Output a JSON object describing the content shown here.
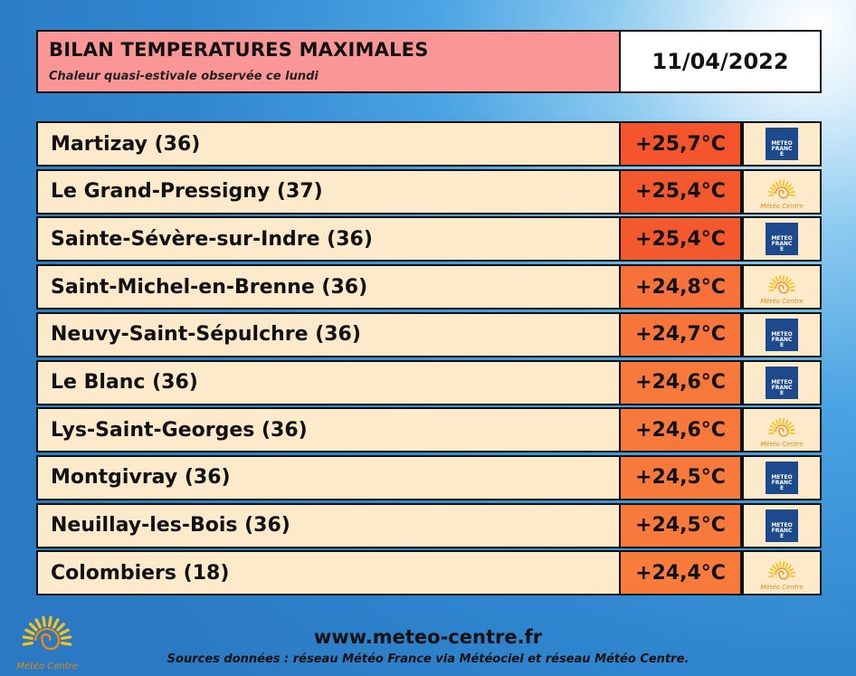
{
  "header": {
    "title": "BILAN TEMPERATURES MAXIMALES",
    "subtitle": "Chaleur quasi-estivale observée ce lundi",
    "date": "11/04/2022"
  },
  "table": {
    "rows": [
      {
        "station": "Martizay (36)",
        "temp": "+25,7°C",
        "color": "#f4552c",
        "logo": "METEO FRANCE"
      },
      {
        "station": "Le Grand-Pressigny (37)",
        "temp": "+25,4°C",
        "color": "#f4582d",
        "logo": "Météo Centre"
      },
      {
        "station": "Sainte-Sévère-sur-Indre (36)",
        "temp": "+25,4°C",
        "color": "#f4582d",
        "logo": "METEO FRANCE"
      },
      {
        "station": "Saint-Michel-en-Brenne (36)",
        "temp": "+24,8°C",
        "color": "#f7723a",
        "logo": "Météo Centre"
      },
      {
        "station": "Neuvy-Saint-Sépulchre (36)",
        "temp": "+24,7°C",
        "color": "#f7753a",
        "logo": "METEO FRANCE"
      },
      {
        "station": "Le Blanc (36)",
        "temp": "+24,6°C",
        "color": "#f7783b",
        "logo": "METEO FRANCE"
      },
      {
        "station": "Lys-Saint-Georges (36)",
        "temp": "+24,6°C",
        "color": "#f7783b",
        "logo": "Météo Centre"
      },
      {
        "station": "Montgivray (36)",
        "temp": "+24,5°C",
        "color": "#f77a3c",
        "logo": "METEO FRANCE"
      },
      {
        "station": "Neuillay-les-Bois (36)",
        "temp": "+24,5°C",
        "color": "#f77a3c",
        "logo": "METEO FRANCE"
      },
      {
        "station": "Colombiers (18)",
        "temp": "+24,4°C",
        "color": "#f77c3c",
        "logo": "Météo Centre"
      }
    ]
  },
  "footer": {
    "site": "www.meteo-centre.fr",
    "sources": "Sources données : réseau Météo France via Météociel et réseau Météo Centre.",
    "logo": "Météo Centre"
  }
}
